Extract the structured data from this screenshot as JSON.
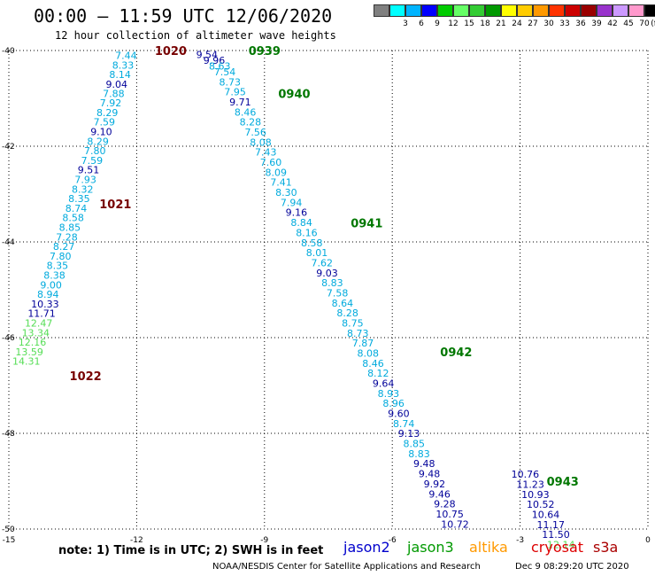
{
  "header": {
    "title": "00:00 — 11:59 UTC 12/06/2020",
    "subtitle": "12 hour collection of altimeter wave heights"
  },
  "color_scale": {
    "unit_label": "(ft)",
    "swatches": [
      {
        "color": "#808080",
        "label": ""
      },
      {
        "color": "#00ffff",
        "label": "3"
      },
      {
        "color": "#00b4ff",
        "label": "6"
      },
      {
        "color": "#0000ff",
        "label": "9"
      },
      {
        "color": "#00cc00",
        "label": "12"
      },
      {
        "color": "#66ff66",
        "label": "15"
      },
      {
        "color": "#33cc33",
        "label": "18"
      },
      {
        "color": "#009900",
        "label": "21"
      },
      {
        "color": "#ffff00",
        "label": "24"
      },
      {
        "color": "#ffcc00",
        "label": "27"
      },
      {
        "color": "#ff9900",
        "label": "30"
      },
      {
        "color": "#ff3300",
        "label": "33"
      },
      {
        "color": "#cc0000",
        "label": "36"
      },
      {
        "color": "#990000",
        "label": "39"
      },
      {
        "color": "#9933cc",
        "label": "42"
      },
      {
        "color": "#cc99ff",
        "label": "45"
      },
      {
        "color": "#ff99cc",
        "label": "70"
      },
      {
        "color": "#000000",
        "label": ""
      }
    ]
  },
  "axes": {
    "lon_ticks": [
      "-15",
      "-12",
      "-9",
      "-6",
      "-3",
      "0"
    ],
    "lat_ticks": [
      "-40",
      "-42",
      "-44",
      "-46",
      "-48",
      "-50"
    ],
    "lon_range": [
      -15,
      0
    ],
    "lat_range": [
      -50,
      -40
    ]
  },
  "colors": {
    "light_blue": "#00aadd",
    "dark_blue": "#000099",
    "light_green": "#55dd55",
    "dark_green": "#007700",
    "maroon": "#770000",
    "grid": "#000000"
  },
  "time_labels": [
    {
      "text": "1020",
      "lon": -11.2,
      "lat": -40.0,
      "color": "maroon"
    },
    {
      "text": "1021",
      "lon": -12.5,
      "lat": -43.2,
      "color": "maroon"
    },
    {
      "text": "1022",
      "lon": -13.2,
      "lat": -46.8,
      "color": "maroon"
    },
    {
      "text": "0939",
      "lon": -9.0,
      "lat": -40.0,
      "color": "dark_green"
    },
    {
      "text": "0940",
      "lon": -8.3,
      "lat": -40.9,
      "color": "dark_green"
    },
    {
      "text": "0941",
      "lon": -6.6,
      "lat": -43.6,
      "color": "dark_green"
    },
    {
      "text": "0942",
      "lon": -4.5,
      "lat": -46.3,
      "color": "dark_green"
    },
    {
      "text": "0943",
      "lon": -2.0,
      "lat": -49.0,
      "color": "dark_green"
    }
  ],
  "tracks": [
    {
      "name": "left-track",
      "points": [
        {
          "v": "7.44",
          "lon": -12.25,
          "lat": -40.03,
          "c": "light_blue"
        },
        {
          "v": "8.33",
          "lon": -12.32,
          "lat": -40.23,
          "c": "light_blue"
        },
        {
          "v": "8.14",
          "lon": -12.39,
          "lat": -40.43,
          "c": "light_blue"
        },
        {
          "v": "9.04",
          "lon": -12.47,
          "lat": -40.63,
          "c": "dark_blue"
        },
        {
          "v": "7.88",
          "lon": -12.54,
          "lat": -40.82,
          "c": "light_blue"
        },
        {
          "v": "7.92",
          "lon": -12.61,
          "lat": -41.02,
          "c": "light_blue"
        },
        {
          "v": "8.29",
          "lon": -12.69,
          "lat": -41.22,
          "c": "light_blue"
        },
        {
          "v": "7.59",
          "lon": -12.76,
          "lat": -41.42,
          "c": "light_blue"
        },
        {
          "v": "9.10",
          "lon": -12.83,
          "lat": -41.62,
          "c": "dark_blue"
        },
        {
          "v": "8.29",
          "lon": -12.91,
          "lat": -41.82,
          "c": "light_blue"
        },
        {
          "v": "7.80",
          "lon": -12.98,
          "lat": -42.02,
          "c": "light_blue"
        },
        {
          "v": "7.59",
          "lon": -13.05,
          "lat": -42.22,
          "c": "light_blue"
        },
        {
          "v": "9.51",
          "lon": -13.13,
          "lat": -42.42,
          "c": "dark_blue"
        },
        {
          "v": "7.93",
          "lon": -13.2,
          "lat": -42.62,
          "c": "light_blue"
        },
        {
          "v": "8.32",
          "lon": -13.27,
          "lat": -42.82,
          "c": "light_blue"
        },
        {
          "v": "8.35",
          "lon": -13.35,
          "lat": -43.02,
          "c": "light_blue"
        },
        {
          "v": "8.74",
          "lon": -13.42,
          "lat": -43.22,
          "c": "light_blue"
        },
        {
          "v": "8.58",
          "lon": -13.49,
          "lat": -43.42,
          "c": "light_blue"
        },
        {
          "v": "8.85",
          "lon": -13.57,
          "lat": -43.62,
          "c": "light_blue"
        },
        {
          "v": "7.28",
          "lon": -13.64,
          "lat": -43.82,
          "c": "light_blue"
        },
        {
          "v": "8.27",
          "lon": -13.71,
          "lat": -44.02,
          "c": "light_blue"
        },
        {
          "v": "7.80",
          "lon": -13.79,
          "lat": -44.22,
          "c": "light_blue"
        },
        {
          "v": "8.35",
          "lon": -13.86,
          "lat": -44.42,
          "c": "light_blue"
        },
        {
          "v": "8.38",
          "lon": -13.93,
          "lat": -44.62,
          "c": "light_blue"
        },
        {
          "v": "9.00",
          "lon": -14.01,
          "lat": -44.82,
          "c": "light_blue"
        },
        {
          "v": "8.94",
          "lon": -14.08,
          "lat": -45.02,
          "c": "light_blue"
        },
        {
          "v": "10.33",
          "lon": -14.15,
          "lat": -45.22,
          "c": "dark_blue"
        },
        {
          "v": "11.71",
          "lon": -14.23,
          "lat": -45.42,
          "c": "dark_blue"
        },
        {
          "v": "12.47",
          "lon": -14.3,
          "lat": -45.62,
          "c": "light_green"
        },
        {
          "v": "13.34",
          "lon": -14.37,
          "lat": -45.82,
          "c": "light_green"
        },
        {
          "v": "12.16",
          "lon": -14.45,
          "lat": -46.02,
          "c": "light_green"
        },
        {
          "v": "13.59",
          "lon": -14.52,
          "lat": -46.22,
          "c": "light_green"
        },
        {
          "v": "14.31",
          "lon": -14.59,
          "lat": -46.42,
          "c": "light_green"
        }
      ]
    },
    {
      "name": "right-track",
      "points": [
        {
          "v": "9.54",
          "lon": -10.35,
          "lat": -40.01,
          "c": "dark_blue"
        },
        {
          "v": "9.96",
          "lon": -10.18,
          "lat": -40.13,
          "c": "dark_blue"
        },
        {
          "v": "8.63",
          "lon": -10.05,
          "lat": -40.25,
          "c": "light_blue"
        },
        {
          "v": "7.54",
          "lon": -9.93,
          "lat": -40.37,
          "c": "light_blue"
        },
        {
          "v": "8.73",
          "lon": -9.81,
          "lat": -40.58,
          "c": "light_blue"
        },
        {
          "v": "7.95",
          "lon": -9.69,
          "lat": -40.79,
          "c": "light_blue"
        },
        {
          "v": "9.71",
          "lon": -9.57,
          "lat": -41.0,
          "c": "dark_blue"
        },
        {
          "v": "8.46",
          "lon": -9.45,
          "lat": -41.21,
          "c": "light_blue"
        },
        {
          "v": "8.28",
          "lon": -9.33,
          "lat": -41.42,
          "c": "light_blue"
        },
        {
          "v": "7.56",
          "lon": -9.21,
          "lat": -41.63,
          "c": "light_blue"
        },
        {
          "v": "8.08",
          "lon": -9.09,
          "lat": -41.84,
          "c": "light_blue"
        },
        {
          "v": "7.43",
          "lon": -8.97,
          "lat": -42.05,
          "c": "light_blue"
        },
        {
          "v": "7.60",
          "lon": -8.85,
          "lat": -42.26,
          "c": "light_blue"
        },
        {
          "v": "8.09",
          "lon": -8.73,
          "lat": -42.47,
          "c": "light_blue"
        },
        {
          "v": "7.41",
          "lon": -8.61,
          "lat": -42.68,
          "c": "light_blue"
        },
        {
          "v": "8.30",
          "lon": -8.49,
          "lat": -42.89,
          "c": "light_blue"
        },
        {
          "v": "7.94",
          "lon": -8.37,
          "lat": -43.1,
          "c": "light_blue"
        },
        {
          "v": "9.16",
          "lon": -8.25,
          "lat": -43.31,
          "c": "dark_blue"
        },
        {
          "v": "8.84",
          "lon": -8.13,
          "lat": -43.52,
          "c": "light_blue"
        },
        {
          "v": "8.16",
          "lon": -8.01,
          "lat": -43.73,
          "c": "light_blue"
        },
        {
          "v": "8.58",
          "lon": -7.89,
          "lat": -43.94,
          "c": "light_blue"
        },
        {
          "v": "8.01",
          "lon": -7.77,
          "lat": -44.15,
          "c": "light_blue"
        },
        {
          "v": "7.62",
          "lon": -7.65,
          "lat": -44.36,
          "c": "light_blue"
        },
        {
          "v": "9.03",
          "lon": -7.53,
          "lat": -44.57,
          "c": "dark_blue"
        },
        {
          "v": "8.83",
          "lon": -7.41,
          "lat": -44.78,
          "c": "light_blue"
        },
        {
          "v": "7.58",
          "lon": -7.29,
          "lat": -44.99,
          "c": "light_blue"
        },
        {
          "v": "8.64",
          "lon": -7.17,
          "lat": -45.2,
          "c": "light_blue"
        },
        {
          "v": "8.28",
          "lon": -7.05,
          "lat": -45.41,
          "c": "light_blue"
        },
        {
          "v": "8.75",
          "lon": -6.93,
          "lat": -45.62,
          "c": "light_blue"
        },
        {
          "v": "8.73",
          "lon": -6.81,
          "lat": -45.83,
          "c": "light_blue"
        },
        {
          "v": "7.87",
          "lon": -6.69,
          "lat": -46.04,
          "c": "light_blue"
        },
        {
          "v": "8.08",
          "lon": -6.57,
          "lat": -46.25,
          "c": "light_blue"
        },
        {
          "v": "8.46",
          "lon": -6.45,
          "lat": -46.46,
          "c": "light_blue"
        },
        {
          "v": "8.12",
          "lon": -6.33,
          "lat": -46.67,
          "c": "light_blue"
        },
        {
          "v": "9.64",
          "lon": -6.21,
          "lat": -46.88,
          "c": "dark_blue"
        },
        {
          "v": "8.93",
          "lon": -6.09,
          "lat": -47.09,
          "c": "light_blue"
        },
        {
          "v": "8.96",
          "lon": -5.97,
          "lat": -47.3,
          "c": "light_blue"
        },
        {
          "v": "9.60",
          "lon": -5.85,
          "lat": -47.51,
          "c": "dark_blue"
        },
        {
          "v": "8.74",
          "lon": -5.73,
          "lat": -47.72,
          "c": "light_blue"
        },
        {
          "v": "9.13",
          "lon": -5.61,
          "lat": -47.93,
          "c": "dark_blue"
        },
        {
          "v": "8.85",
          "lon": -5.49,
          "lat": -48.14,
          "c": "light_blue"
        },
        {
          "v": "8.83",
          "lon": -5.37,
          "lat": -48.35,
          "c": "light_blue"
        },
        {
          "v": "9.48",
          "lon": -5.25,
          "lat": -48.56,
          "c": "dark_blue"
        },
        {
          "v": "9.48",
          "lon": -5.13,
          "lat": -48.77,
          "c": "dark_blue"
        },
        {
          "v": "9.92",
          "lon": -5.01,
          "lat": -48.98,
          "c": "dark_blue"
        },
        {
          "v": "9.46",
          "lon": -4.89,
          "lat": -49.19,
          "c": "dark_blue"
        },
        {
          "v": "9.28",
          "lon": -4.77,
          "lat": -49.4,
          "c": "dark_blue"
        },
        {
          "v": "10.75",
          "lon": -4.65,
          "lat": -49.61,
          "c": "dark_blue"
        },
        {
          "v": "10.72",
          "lon": -4.53,
          "lat": -49.82,
          "c": "dark_blue"
        }
      ]
    },
    {
      "name": "right-track-tail",
      "points": [
        {
          "v": "10.76",
          "lon": -2.88,
          "lat": -48.78,
          "c": "dark_blue"
        },
        {
          "v": "11.23",
          "lon": -2.76,
          "lat": -48.99,
          "c": "dark_blue"
        },
        {
          "v": "10.93",
          "lon": -2.64,
          "lat": -49.2,
          "c": "dark_blue"
        },
        {
          "v": "10.52",
          "lon": -2.52,
          "lat": -49.41,
          "c": "dark_blue"
        },
        {
          "v": "10.64",
          "lon": -2.4,
          "lat": -49.62,
          "c": "dark_blue"
        },
        {
          "v": "11.17",
          "lon": -2.28,
          "lat": -49.83,
          "c": "dark_blue"
        },
        {
          "v": "11.50",
          "lon": -2.16,
          "lat": -50.04,
          "c": "dark_blue"
        },
        {
          "v": "12.14",
          "lon": -2.04,
          "lat": -50.25,
          "c": "light_green"
        }
      ]
    }
  ],
  "footer": {
    "note": "note:  1) Time is in UTC;  2) SWH is in feet",
    "satellites": [
      {
        "name": "jason2",
        "color": "#0000cc"
      },
      {
        "name": "jason3",
        "color": "#009900"
      },
      {
        "name": "altika",
        "color": "#ff9900"
      },
      {
        "name": "cryosat",
        "color": "#dd0000"
      },
      {
        "name": "s3a",
        "color": "#aa0000"
      }
    ],
    "credit": "NOAA/NESDIS Center for Satellite Applications and Research",
    "generated": "Dec  9 08:29:20 UTC 2020"
  }
}
